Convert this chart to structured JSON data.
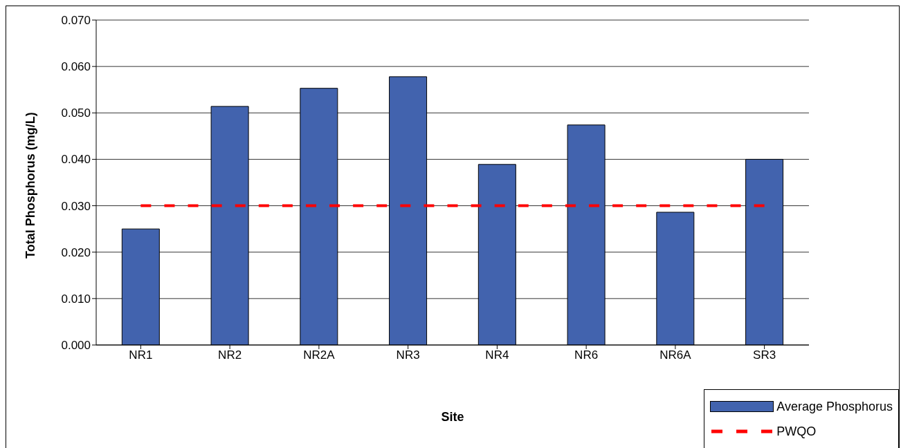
{
  "chart_data": {
    "type": "bar",
    "xlabel": "Site",
    "ylabel": "Total Phosphorus (mg/L)",
    "categories": [
      "NR1",
      "NR2",
      "NR2A",
      "NR3",
      "NR4",
      "NR6",
      "NR6A",
      "SR3"
    ],
    "series": [
      {
        "name": "Average Phosphorus",
        "type": "bar",
        "color": "#4263ae",
        "values": [
          0.025,
          0.0514,
          0.0553,
          0.0578,
          0.0389,
          0.0474,
          0.0286,
          0.04
        ]
      },
      {
        "name": "PWQO",
        "type": "line",
        "color": "#ff0000",
        "line_style": "dashed",
        "marker": "none",
        "values": [
          0.03,
          0.03,
          0.03,
          0.03,
          0.03,
          0.03,
          0.03,
          0.03
        ]
      }
    ],
    "ylim": [
      0,
      0.07
    ],
    "yticks": [
      {
        "value": 0,
        "label": "0.000"
      },
      {
        "value": 0.01,
        "label": "0.010"
      },
      {
        "value": 0.02,
        "label": "0.020"
      },
      {
        "value": 0.03,
        "label": "0.030"
      },
      {
        "value": 0.04,
        "label": "0.040"
      },
      {
        "value": 0.05,
        "label": "0.050"
      },
      {
        "value": 0.06,
        "label": "0.060"
      },
      {
        "value": 0.07,
        "label": "0.070"
      }
    ],
    "grid": "y",
    "legend": "bottom right"
  }
}
